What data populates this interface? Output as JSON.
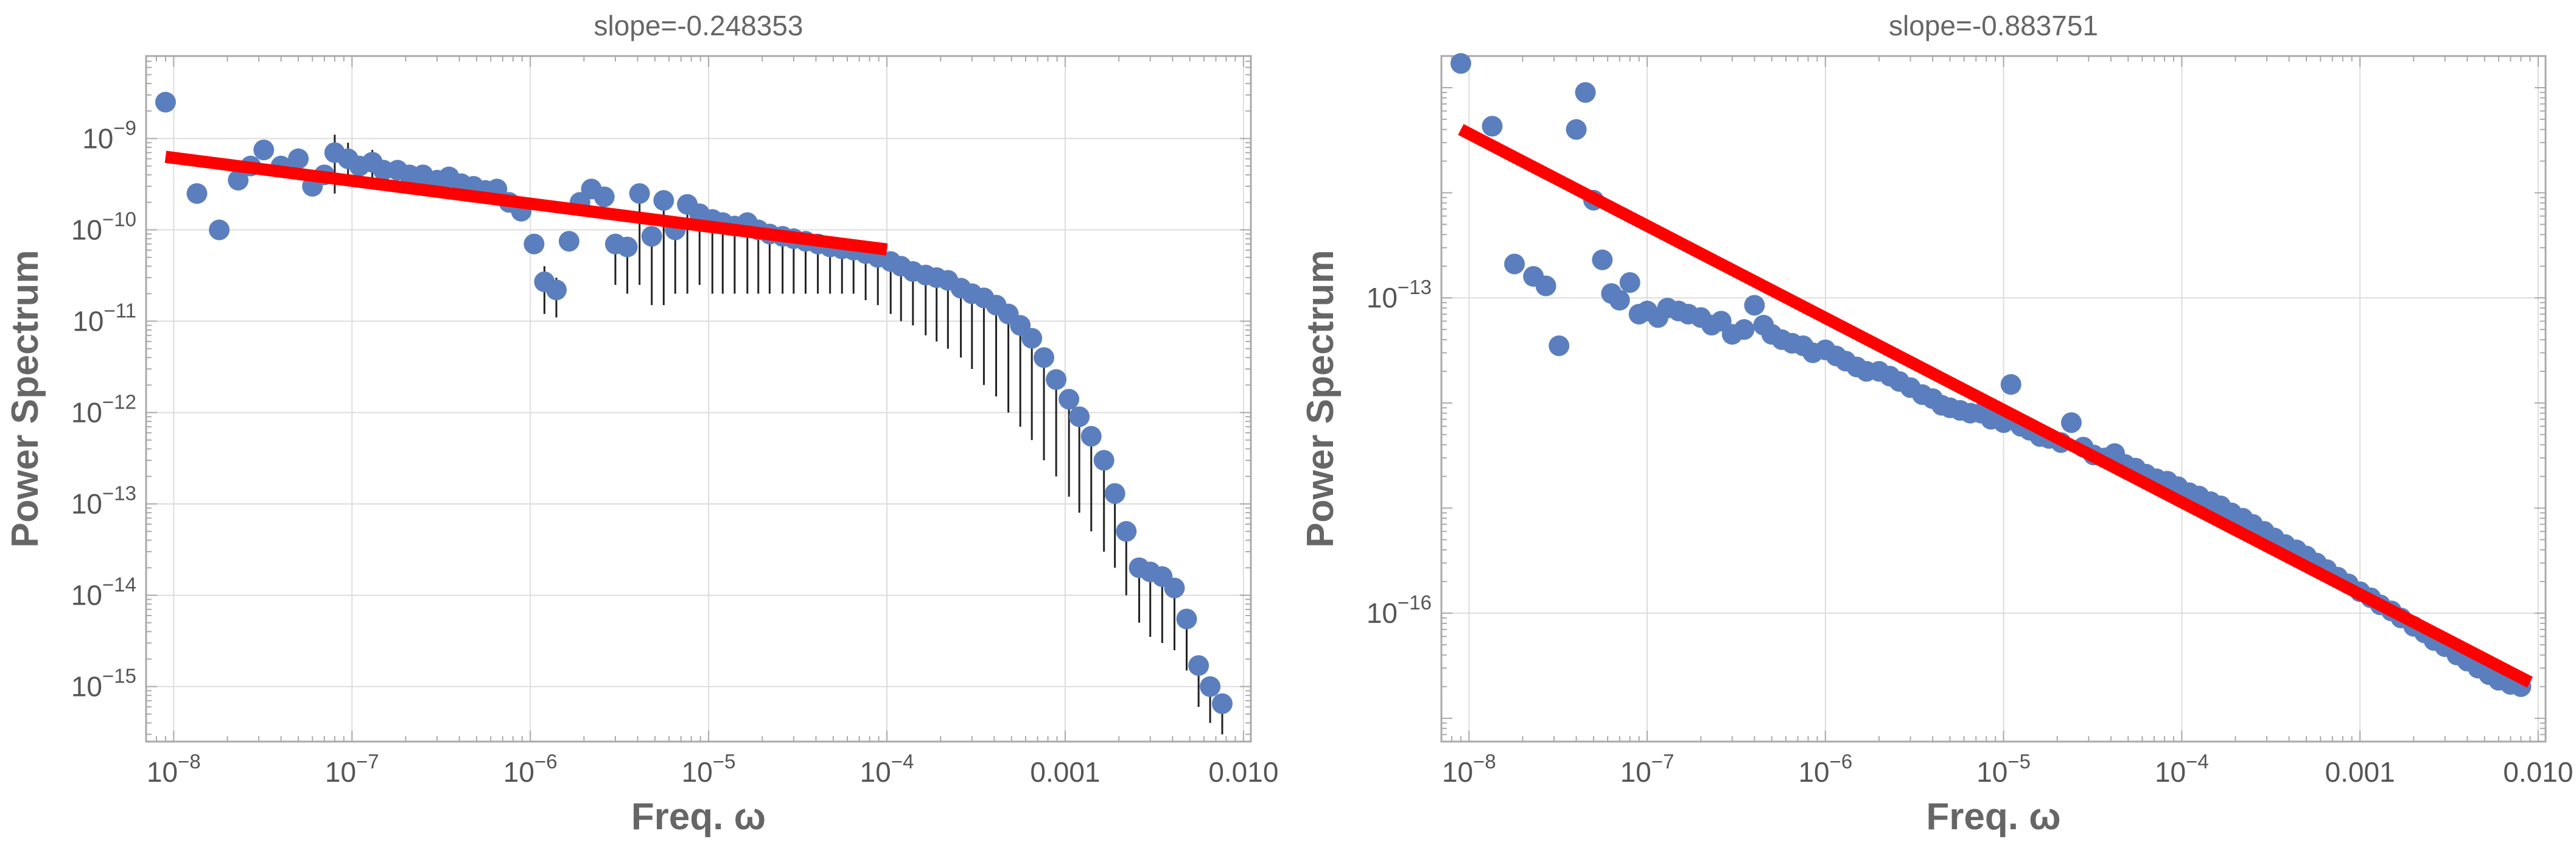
{
  "chart_data": [
    {
      "type": "scatter",
      "title": "slope=-0.248353",
      "xlabel": "Freq. ω",
      "ylabel": "Power Spectrum",
      "xscale": "log",
      "yscale": "log",
      "xlim": [
        7e-09,
        0.011
      ],
      "ylim": [
        2.5e-16,
        8e-09
      ],
      "grid": true,
      "xticks": [
        {
          "v": 1e-08,
          "l": "10^-8"
        },
        {
          "v": 1e-07,
          "l": "10^-7"
        },
        {
          "v": 1e-06,
          "l": "10^-6"
        },
        {
          "v": 1e-05,
          "l": "10^-5"
        },
        {
          "v": 0.0001,
          "l": "10^-4"
        },
        {
          "v": 0.001,
          "l": "0.001"
        },
        {
          "v": 0.01,
          "l": "0.010"
        }
      ],
      "yticks": [
        {
          "v": 1e-09,
          "l": "10^-9"
        },
        {
          "v": 1e-10,
          "l": "10^-10"
        },
        {
          "v": 1e-11,
          "l": "10^-11"
        },
        {
          "v": 1e-12,
          "l": "10^-12"
        },
        {
          "v": 1e-13,
          "l": "10^-13"
        },
        {
          "v": 1e-14,
          "l": "10^-14"
        },
        {
          "v": 1e-15,
          "l": "10^-15"
        }
      ],
      "series": [
        {
          "name": "power spectrum",
          "x": [
            9e-09,
            1.35e-08,
            1.8e-08,
            2.3e-08,
            2.7e-08,
            3.2e-08,
            4e-08,
            5e-08,
            6e-08,
            7e-08,
            8e-08,
            9.5e-08,
            1.1e-07,
            1.3e-07,
            1.5e-07,
            1.8e-07,
            2.1e-07,
            2.5e-07,
            3e-07,
            3.5e-07,
            4.1e-07,
            4.8e-07,
            5.6e-07,
            6.5e-07,
            7.6e-07,
            8.9e-07,
            1.05e-06,
            1.2e-06,
            1.4e-06,
            1.65e-06,
            1.9e-06,
            2.2e-06,
            2.6e-06,
            3e-06,
            3.5e-06,
            4.1e-06,
            4.8e-06,
            5.6e-06,
            6.5e-06,
            7.6e-06,
            8.9e-06,
            1.05e-05,
            1.2e-05,
            1.4e-05,
            1.65e-05,
            1.9e-05,
            2.2e-05,
            2.6e-05,
            3e-05,
            3.5e-05,
            4.1e-05,
            4.8e-05,
            5.6e-05,
            6.5e-05,
            7.6e-05,
            8.9e-05,
            0.000105,
            0.00012,
            0.00014,
            0.000165,
            0.00019,
            0.00022,
            0.00026,
            0.0003,
            0.00035,
            0.00041,
            0.00048,
            0.00056,
            0.00065,
            0.00076,
            0.00089,
            0.00105,
            0.0012,
            0.0014,
            0.00165,
            0.0019,
            0.0022,
            0.0026,
            0.003,
            0.0035,
            0.0041,
            0.0048,
            0.0056,
            0.0065,
            0.0076
          ],
          "y": [
            2.5e-09,
            2.5e-10,
            1e-10,
            3.5e-10,
            5e-10,
            7.5e-10,
            5e-10,
            6e-10,
            3e-10,
            4e-10,
            7e-10,
            6e-10,
            5e-10,
            5.5e-10,
            4.5e-10,
            4.5e-10,
            4e-10,
            4e-10,
            3.5e-10,
            3.8e-10,
            3.2e-10,
            3e-10,
            2.7e-10,
            2.8e-10,
            2e-10,
            1.6e-10,
            7e-11,
            2.7e-11,
            2.2e-11,
            7.5e-11,
            2e-10,
            2.8e-10,
            2.3e-10,
            7e-11,
            6.5e-11,
            2.5e-10,
            8.5e-11,
            2.1e-10,
            1e-10,
            1.9e-10,
            1.5e-10,
            1.3e-10,
            1.2e-10,
            1.1e-10,
            1.2e-10,
            1e-10,
            9e-11,
            8.5e-11,
            8e-11,
            7.5e-11,
            7e-11,
            6.5e-11,
            6.2e-11,
            6e-11,
            5.5e-11,
            5e-11,
            4.5e-11,
            4e-11,
            3.5e-11,
            3.2e-11,
            3e-11,
            2.8e-11,
            2.3e-11,
            2e-11,
            1.8e-11,
            1.5e-11,
            1.2e-11,
            9e-12,
            6.5e-12,
            4e-12,
            2.3e-12,
            1.4e-12,
            9e-13,
            5.5e-13,
            3e-13,
            1.3e-13,
            5e-14,
            2e-14,
            1.8e-14,
            1.6e-14,
            1.2e-14,
            5.5e-15,
            1.7e-15,
            1e-15,
            6.5e-16
          ],
          "err_low": [
            2.5e-09,
            2.5e-10,
            1e-10,
            3.5e-10,
            5e-10,
            7.5e-10,
            5e-10,
            6e-10,
            3e-10,
            4e-10,
            2.5e-10,
            3e-10,
            5e-10,
            3e-10,
            4.5e-10,
            4.5e-10,
            4e-10,
            4e-10,
            3.5e-10,
            3.8e-10,
            3.2e-10,
            3e-10,
            2.7e-10,
            2.8e-10,
            2e-10,
            1.6e-10,
            7e-11,
            1.2e-11,
            1.1e-11,
            7.5e-11,
            2e-10,
            2.8e-10,
            2.3e-10,
            2.5e-11,
            2e-11,
            2.5e-11,
            1.5e-11,
            1.5e-11,
            2e-11,
            2e-11,
            2.5e-11,
            2e-11,
            2e-11,
            2e-11,
            2e-11,
            2e-11,
            2e-11,
            2e-11,
            2e-11,
            2e-11,
            2e-11,
            2e-11,
            2e-11,
            2e-11,
            1.7e-11,
            1.5e-11,
            1.2e-11,
            1e-11,
            9e-12,
            7e-12,
            6e-12,
            5e-12,
            4e-12,
            3e-12,
            2e-12,
            1.5e-12,
            1e-12,
            7e-13,
            5e-13,
            3e-13,
            2e-13,
            1.2e-13,
            8e-14,
            5e-14,
            3e-14,
            2e-14,
            1e-14,
            5e-15,
            3.5e-15,
            3e-15,
            2.5e-15,
            1.5e-15,
            6e-16,
            4e-16,
            3e-16
          ],
          "err_high": [
            2.5e-09,
            2.5e-10,
            1e-10,
            3.5e-10,
            5e-10,
            7.5e-10,
            5e-10,
            6e-10,
            3e-10,
            4e-10,
            1.1e-09,
            9e-10,
            5e-10,
            7.5e-10,
            4.5e-10,
            4.5e-10,
            4e-10,
            4e-10,
            3.5e-10,
            3.8e-10,
            3.2e-10,
            3e-10,
            2.7e-10,
            2.8e-10,
            2e-10,
            1.6e-10,
            7e-11,
            4e-11,
            3e-11,
            7.5e-11,
            2e-10,
            2.8e-10,
            2.3e-10,
            7e-11,
            6.5e-11,
            2.5e-10,
            8.5e-11,
            2.1e-10,
            1e-10,
            1.9e-10,
            1.5e-10,
            1.3e-10,
            1.2e-10,
            1.1e-10,
            1.2e-10,
            1e-10,
            9e-11,
            8.5e-11,
            8e-11,
            7.5e-11,
            7e-11,
            6.5e-11,
            6.2e-11,
            6e-11,
            5.5e-11,
            5e-11,
            4.5e-11,
            4e-11,
            3.5e-11,
            3.2e-11,
            3e-11,
            2.8e-11,
            2.3e-11,
            2e-11,
            1.8e-11,
            1.5e-11,
            1.2e-11,
            9e-12,
            6.5e-12,
            4e-12,
            2.3e-12,
            1.4e-12,
            9e-13,
            5.5e-13,
            3e-13,
            1.3e-13,
            5e-14,
            2e-14,
            1.8e-14,
            1.6e-14,
            1.2e-14,
            5.5e-15,
            1.7e-15,
            1e-15,
            6.5e-16
          ]
        },
        {
          "name": "fit",
          "type": "line",
          "x": [
            9e-09,
            0.0001
          ],
          "y": [
            6.3e-10,
            6.1e-11
          ]
        }
      ]
    },
    {
      "type": "scatter",
      "title": "slope=-0.883751",
      "xlabel": "Freq. ω",
      "ylabel": "Power Spectrum",
      "xscale": "log",
      "yscale": "log",
      "xlim": [
        7e-09,
        0.011
      ],
      "ylim": [
        6e-18,
        2e-11
      ],
      "grid": true,
      "xticks": [
        {
          "v": 1e-08,
          "l": "10^-8"
        },
        {
          "v": 1e-07,
          "l": "10^-7"
        },
        {
          "v": 1e-06,
          "l": "10^-6"
        },
        {
          "v": 1e-05,
          "l": "10^-5"
        },
        {
          "v": 0.0001,
          "l": "10^-4"
        },
        {
          "v": 0.001,
          "l": "0.001"
        },
        {
          "v": 0.01,
          "l": "0.010"
        }
      ],
      "yticks": [
        {
          "v": 1e-13,
          "l": "10^-13"
        },
        {
          "v": 1e-16,
          "l": "10^-16"
        }
      ],
      "series": [
        {
          "name": "power spectrum",
          "x": [
            9e-09,
            1.35e-08,
            1.8e-08,
            2.3e-08,
            2.7e-08,
            3.2e-08,
            4e-08,
            4.5e-08,
            5e-08,
            5.6e-08,
            6.3e-08,
            7e-08,
            8e-08,
            9e-08,
            1e-07,
            1.15e-07,
            1.3e-07,
            1.5e-07,
            1.7e-07,
            2e-07,
            2.3e-07,
            2.6e-07,
            3e-07,
            3.5e-07,
            4e-07,
            4.5e-07,
            5e-07,
            5.7e-07,
            6.5e-07,
            7.5e-07,
            8.5e-07,
            1e-06,
            1.15e-06,
            1.3e-06,
            1.5e-06,
            1.7e-06,
            2e-06,
            2.3e-06,
            2.6e-06,
            3e-06,
            3.5e-06,
            4e-06,
            4.5e-06,
            5e-06,
            5.7e-06,
            6.5e-06,
            7.5e-06,
            8.5e-06,
            1e-05,
            1.1e-05,
            1.25e-05,
            1.4e-05,
            1.6e-05,
            1.8e-05,
            2.1e-05,
            2.4e-05,
            2.8e-05,
            3.2e-05,
            3.7e-05,
            4.2e-05,
            4.8e-05,
            5.5e-05,
            6.3e-05,
            7.2e-05,
            8.3e-05,
            9.5e-05,
            0.00011,
            0.000125,
            0.000145,
            0.000165,
            0.00019,
            0.00022,
            0.00025,
            0.00029,
            0.00033,
            0.00038,
            0.00044,
            0.0005,
            0.00057,
            0.00065,
            0.00075,
            0.00086,
            0.001,
            0.00115,
            0.0013,
            0.0015,
            0.0017,
            0.002,
            0.0023,
            0.0026,
            0.003,
            0.0035,
            0.004,
            0.0046,
            0.0053,
            0.006,
            0.007,
            0.008
          ],
          "y": [
            1.7e-11,
            4.3e-12,
            2.1e-13,
            1.6e-13,
            1.3e-13,
            3.5e-14,
            4e-12,
            9e-12,
            8.5e-13,
            2.3e-13,
            1.1e-13,
            9.5e-14,
            1.4e-13,
            7e-14,
            7.5e-14,
            6.5e-14,
            8e-14,
            7.5e-14,
            7e-14,
            6.5e-14,
            5.5e-14,
            6e-14,
            4.5e-14,
            5e-14,
            8.5e-14,
            5.5e-14,
            4.5e-14,
            4e-14,
            3.7e-14,
            3.5e-14,
            3e-14,
            3.2e-14,
            2.8e-14,
            2.5e-14,
            2.2e-14,
            2e-14,
            2e-14,
            1.8e-14,
            1.6e-14,
            1.4e-14,
            1.2e-14,
            1.1e-14,
            9.5e-15,
            9e-15,
            8.5e-15,
            8e-15,
            8e-15,
            7e-15,
            6.5e-15,
            1.5e-14,
            6e-15,
            5.5e-15,
            4.8e-15,
            4.6e-15,
            4.2e-15,
            6.5e-15,
            3.8e-15,
            3.2e-15,
            3e-15,
            3.3e-15,
            2.6e-15,
            2.4e-15,
            2.1e-15,
            1.9e-15,
            1.8e-15,
            1.6e-15,
            1.4e-15,
            1.3e-15,
            1.15e-15,
            1.05e-15,
            9e-16,
            8e-16,
            7e-16,
            6e-16,
            5.2e-16,
            4.5e-16,
            4e-16,
            3.5e-16,
            3e-16,
            2.6e-16,
            2.2e-16,
            1.9e-16,
            1.6e-16,
            1.4e-16,
            1.2e-16,
            1.05e-16,
            9e-17,
            7.5e-17,
            6.5e-17,
            5.5e-17,
            4.8e-17,
            4e-17,
            3.5e-17,
            3e-17,
            2.6e-17,
            2.3e-17,
            2.1e-17,
            2e-17
          ],
          "err_low": [
            1.7e-11,
            4.3e-12,
            2.1e-13,
            1.6e-13,
            1.3e-13,
            3.5e-14,
            4e-12,
            9e-12,
            8.5e-13,
            2.3e-13,
            1.1e-13,
            9.5e-14,
            1.4e-13,
            7e-14,
            7.5e-14,
            6.5e-14,
            8e-14,
            7.5e-14,
            7e-14,
            6.5e-14,
            5.5e-14,
            6e-14,
            4.5e-14,
            5e-14,
            8.5e-14,
            5.5e-14,
            4.5e-14,
            4e-14,
            3.7e-14,
            3.5e-14,
            3e-14,
            3.2e-14,
            2.8e-14,
            2.5e-14,
            2.2e-14,
            2e-14,
            2e-14,
            1.8e-14,
            1.6e-14,
            1.4e-14,
            1.2e-14,
            1.1e-14,
            9.5e-15,
            9e-15,
            8.5e-15,
            8e-15,
            8e-15,
            7e-15,
            6.5e-15,
            1.5e-14,
            6e-15,
            5.5e-15,
            4.8e-15,
            4.6e-15,
            4.2e-15,
            6.5e-15,
            3.8e-15,
            3.2e-15,
            3e-15,
            3.3e-15,
            2.6e-15,
            2.4e-15,
            2.1e-15,
            1.9e-15,
            1.8e-15,
            1.6e-15,
            1.4e-15,
            1.3e-15,
            1.15e-15,
            1.05e-15,
            9e-16,
            8e-16,
            7e-16,
            6e-16,
            5.2e-16,
            4.5e-16,
            4e-16,
            3.5e-16,
            3e-16,
            2.6e-16,
            2.2e-16,
            1.9e-16,
            1.6e-16,
            1.4e-16,
            1.2e-16,
            1.05e-16,
            9e-17,
            7.5e-17,
            6.5e-17,
            5.5e-17,
            4.8e-17,
            4e-17,
            3.5e-17,
            3e-17,
            2.6e-17,
            2.3e-17,
            2.1e-17,
            2e-17
          ],
          "err_high": [
            1.7e-11,
            4.3e-12,
            2.1e-13,
            1.6e-13,
            1.3e-13,
            3.5e-14,
            4e-12,
            9e-12,
            8.5e-13,
            2.3e-13,
            1.1e-13,
            9.5e-14,
            1.4e-13,
            7e-14,
            7.5e-14,
            6.5e-14,
            8e-14,
            7.5e-14,
            7e-14,
            6.5e-14,
            5.5e-14,
            6e-14,
            4.5e-14,
            5e-14,
            8.5e-14,
            5.5e-14,
            4.5e-14,
            4e-14,
            3.7e-14,
            3.5e-14,
            3e-14,
            3.2e-14,
            2.8e-14,
            2.5e-14,
            2.2e-14,
            2e-14,
            2e-14,
            1.8e-14,
            1.6e-14,
            1.4e-14,
            1.2e-14,
            1.1e-14,
            9.5e-15,
            9e-15,
            8.5e-15,
            8e-15,
            8e-15,
            7e-15,
            6.5e-15,
            1.5e-14,
            6e-15,
            5.5e-15,
            4.8e-15,
            4.6e-15,
            4.2e-15,
            6.5e-15,
            3.8e-15,
            3.2e-15,
            3e-15,
            3.3e-15,
            2.6e-15,
            2.4e-15,
            2.1e-15,
            1.9e-15,
            1.8e-15,
            1.6e-15,
            1.4e-15,
            1.3e-15,
            1.15e-15,
            1.05e-15,
            9e-16,
            8e-16,
            7e-16,
            6e-16,
            5.2e-16,
            4.5e-16,
            4e-16,
            3.5e-16,
            3e-16,
            2.6e-16,
            2.2e-16,
            1.9e-16,
            1.6e-16,
            1.4e-16,
            1.2e-16,
            1.05e-16,
            9e-17,
            7.5e-17,
            6.5e-17,
            5.5e-17,
            4.8e-17,
            4e-17,
            3.5e-17,
            3e-17,
            2.6e-17,
            2.3e-17,
            2.1e-17,
            2e-17
          ]
        },
        {
          "name": "fit",
          "type": "line",
          "x": [
            9e-09,
            0.009
          ],
          "y": [
            4e-12,
            2.2e-17
          ]
        }
      ]
    }
  ],
  "colors": {
    "points": "#5b7fbe",
    "errorbars": "#222222",
    "fit": "#ff0000",
    "frame": "#aaaaaa",
    "grid": "#dddddd",
    "text": "#666666"
  }
}
